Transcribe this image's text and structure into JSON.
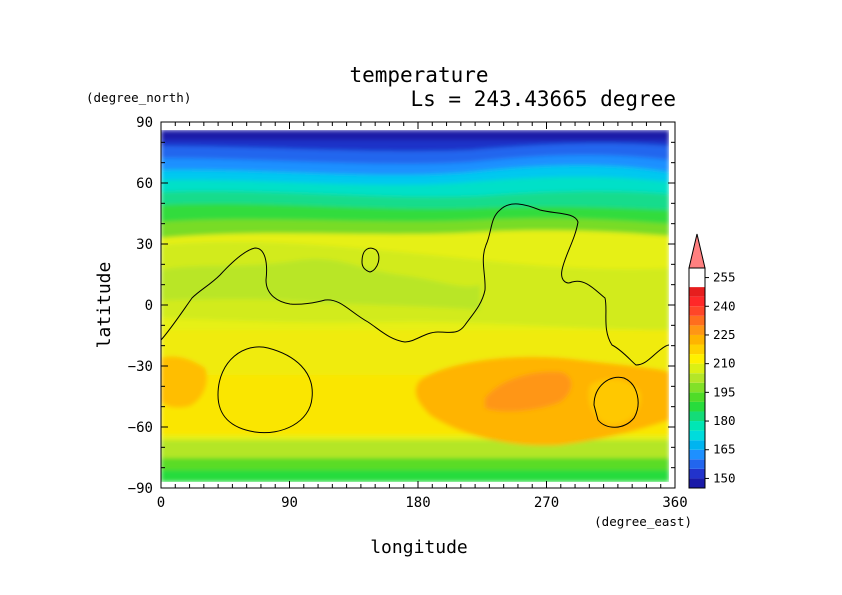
{
  "chart_data": {
    "type": "heatmap",
    "title": "temperature",
    "subtitle": "Ls = 243.43665 degree",
    "xlabel": "longitude",
    "ylabel": "latitude",
    "xunit": "(degree_east)",
    "yunit": "(degree_north)",
    "xlim": [
      0,
      360
    ],
    "ylim": [
      -90,
      90
    ],
    "xticks": [
      "0",
      "90",
      "180",
      "270",
      "360"
    ],
    "yticks": [
      "90",
      "60",
      "30",
      "0",
      "−30",
      "−60",
      "−90"
    ],
    "colorbar": {
      "ticks": [
        "255",
        "240",
        "225",
        "210",
        "195",
        "180",
        "165",
        "150"
      ],
      "min": 145,
      "max": 260,
      "step": 5,
      "colors": [
        "#1a1aa8",
        "#2233cc",
        "#2266ee",
        "#1e90ff",
        "#00b4f0",
        "#00dcdc",
        "#00e6b4",
        "#14dc78",
        "#28dc3c",
        "#50dc28",
        "#82e128",
        "#b4e628",
        "#dcf014",
        "#fff000",
        "#ffd200",
        "#ffb400",
        "#ff9614",
        "#ff6e1e",
        "#ff4628",
        "#ff2828",
        "#e61e1e",
        "#ff8080"
      ]
    }
  }
}
